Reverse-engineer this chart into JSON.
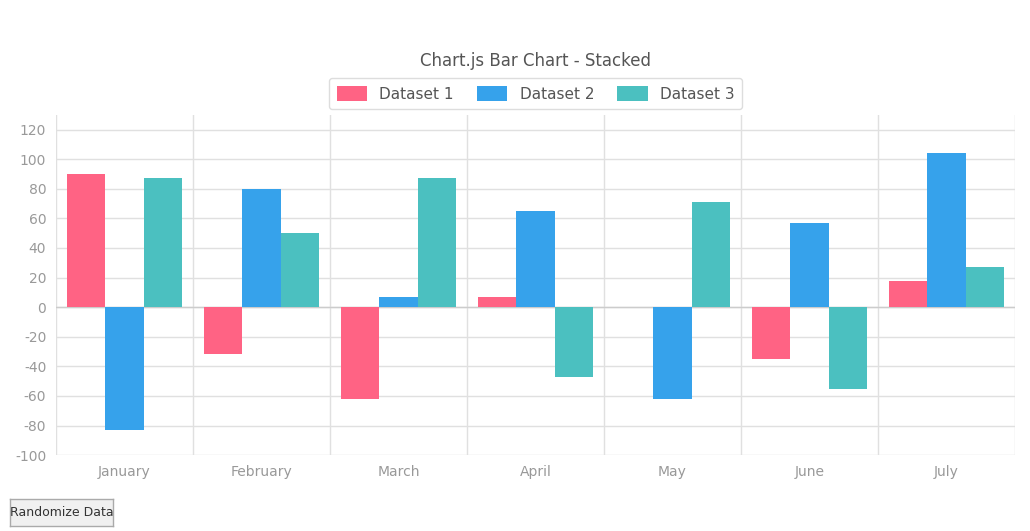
{
  "title": "Chart.js Bar Chart - Stacked",
  "categories": [
    "January",
    "February",
    "March",
    "April",
    "May",
    "June",
    "July"
  ],
  "datasets": [
    {
      "label": "Dataset 1",
      "color": "#FF6384",
      "values": [
        90,
        -32,
        -62,
        7,
        0,
        -35,
        18
      ]
    },
    {
      "label": "Dataset 2",
      "color": "#36A2EB",
      "values": [
        -83,
        80,
        7,
        65,
        -62,
        57,
        104
      ]
    },
    {
      "label": "Dataset 3",
      "color": "#4BC0C0",
      "values": [
        87,
        50,
        87,
        -47,
        71,
        -55,
        27
      ]
    }
  ],
  "ylim": [
    -100,
    130
  ],
  "yticks": [
    -100,
    -80,
    -60,
    -40,
    -20,
    0,
    20,
    40,
    60,
    80,
    100,
    120
  ],
  "bar_width": 0.28,
  "background_color": "#ffffff",
  "plot_bg_color": "#ffffff",
  "grid_color": "#e0e0e0",
  "title_fontsize": 12,
  "legend_fontsize": 11,
  "tick_fontsize": 10,
  "tick_color": "#999999",
  "title_color": "#555555",
  "button_text": "Randomize Data"
}
